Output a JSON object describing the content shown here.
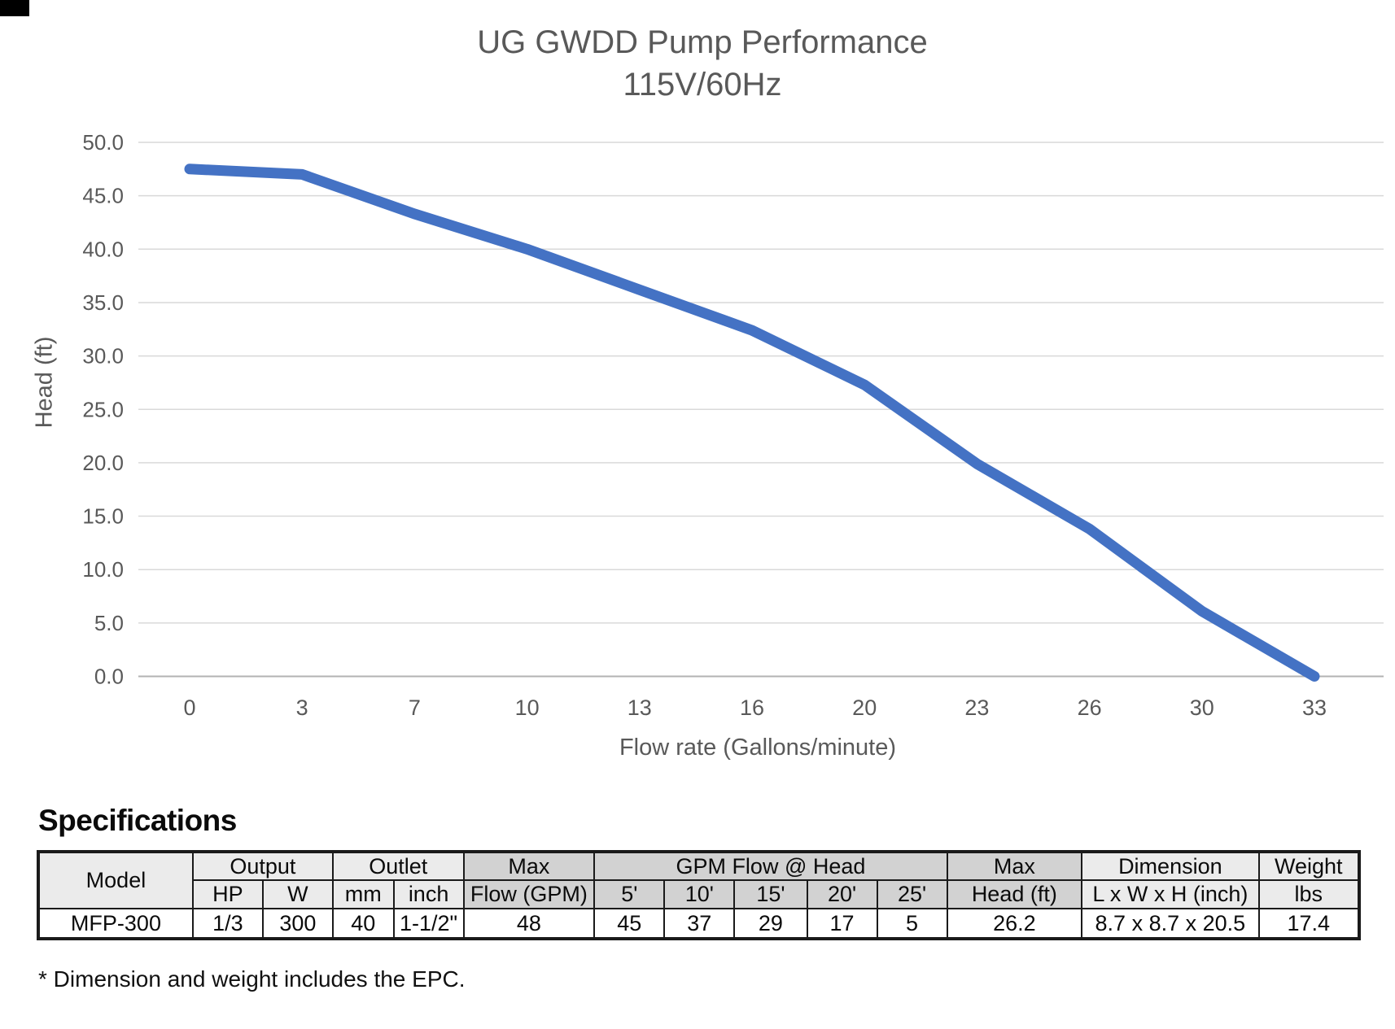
{
  "chart_data": {
    "type": "line",
    "title": "UG GWDD Pump Performance",
    "subtitle": "115V/60Hz",
    "xlabel": "Flow rate (Gallons/minute)",
    "ylabel": "Head (ft)",
    "categories": [
      "0",
      "3",
      "7",
      "10",
      "13",
      "16",
      "20",
      "23",
      "26",
      "30",
      "33"
    ],
    "values": [
      47.5,
      47.0,
      43.3,
      40.0,
      36.2,
      32.4,
      27.3,
      19.9,
      13.8,
      6.1,
      0.0
    ],
    "y_ticks": [
      "0.0",
      "5.0",
      "10.0",
      "15.0",
      "20.0",
      "25.0",
      "30.0",
      "35.0",
      "40.0",
      "45.0",
      "50.0"
    ],
    "ylim": [
      0,
      50
    ],
    "y_step": 5,
    "grid": true,
    "legend": false,
    "line_color": "#4472C4",
    "grid_color": "#d9d9d9",
    "axis_color": "#b3b3b3",
    "text_color": "#595959"
  },
  "spec_table": {
    "heading": "Specifications",
    "header_row1": [
      {
        "label": "Model"
      },
      {
        "label": "Output"
      },
      {
        "label": "Outlet"
      },
      {
        "label": "Max"
      },
      {
        "label": "GPM Flow @ Head"
      },
      {
        "label": "Max"
      },
      {
        "label": "Dimension"
      },
      {
        "label": "Weight"
      }
    ],
    "header_row2": [
      "HP",
      "W",
      "mm",
      "inch",
      "Flow (GPM)",
      "5'",
      "10'",
      "15'",
      "20'",
      "25'",
      "Head (ft)",
      "L x W x H (inch)",
      "lbs"
    ],
    "data_row": [
      "MFP-300",
      "1/3",
      "300",
      "40",
      "1-1/2\"",
      "48",
      "45",
      "37",
      "29",
      "17",
      "5",
      "26.2",
      "8.7 x 8.7 x 20.5",
      "17.4"
    ],
    "footnote": "* Dimension and weight includes the EPC."
  }
}
